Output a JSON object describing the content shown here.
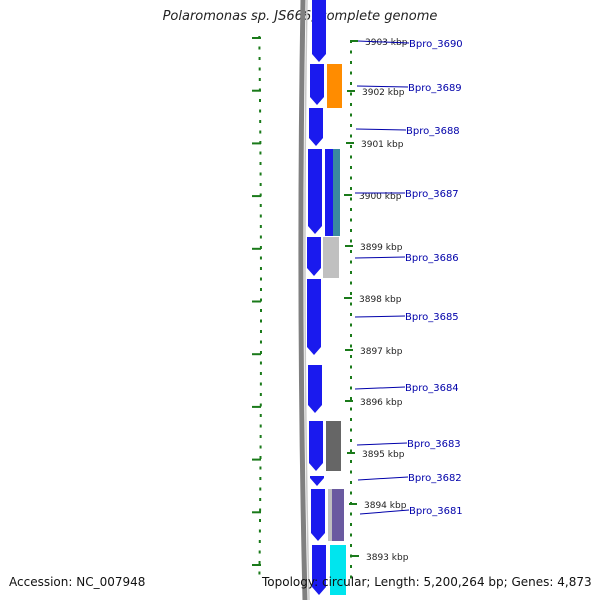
{
  "title": "Polaromonas sp. JS666, complete genome",
  "footer": {
    "accession": "Accession: NC_007948",
    "summary": "Topology: circular; Length: 5,200,264 bp; Genes: 4,873"
  },
  "scale_labels": [
    "3903 kbp",
    "3902 kbp",
    "3901 kbp",
    "3900 kbp",
    "3899 kbp",
    "3898 kbp",
    "3897 kbp",
    "3896 kbp",
    "3895 kbp",
    "3894 kbp",
    "3893 kbp"
  ],
  "genes": [
    "Bpro_3690",
    "Bpro_3689",
    "Bpro_3688",
    "Bpro_3687",
    "Bpro_3686",
    "Bpro_3685",
    "Bpro_3684",
    "Bpro_3683",
    "Bpro_3682",
    "Bpro_3681"
  ],
  "colors": {
    "backbone": "#808080",
    "gene_blue": "#1a1aee",
    "tick_green": "#1a7a1a",
    "label_blue": "#0000aa",
    "orange": "#ff8c00",
    "teal": "#3a8aa0",
    "light_gray": "#c0c0c0",
    "dark_gray": "#666666",
    "purple": "#6a5aa0",
    "cyan": "#00e5ee"
  }
}
